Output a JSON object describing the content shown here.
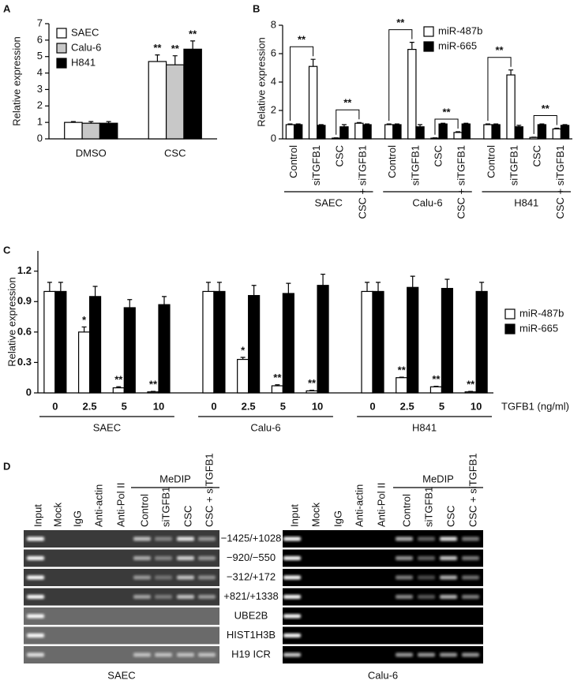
{
  "panels": [
    "A",
    "B",
    "C",
    "D"
  ],
  "chart_data": [
    {
      "type": "bar",
      "ylabel": "Relative expression",
      "categories": [
        "DMSO",
        "CSC"
      ],
      "ylim": [
        0,
        7
      ],
      "yticks": [
        0,
        1,
        2,
        3,
        4,
        5,
        6,
        7
      ],
      "legend": "upper left",
      "series": [
        {
          "name": "SAEC",
          "color": "#ffffff",
          "values": [
            1.0,
            4.7
          ],
          "errors": [
            0.05,
            0.4
          ],
          "annotations": [
            null,
            "**"
          ]
        },
        {
          "name": "Calu-6",
          "color": "#c8c8c8",
          "values": [
            0.95,
            4.5
          ],
          "errors": [
            0.1,
            0.55
          ],
          "annotations": [
            null,
            "**"
          ]
        },
        {
          "name": "H841",
          "color": "#000000",
          "values": [
            0.95,
            5.45
          ],
          "errors": [
            0.1,
            0.5
          ],
          "annotations": [
            null,
            "**"
          ]
        }
      ]
    },
    {
      "type": "bar",
      "ylabel": "Relative expression",
      "categories": [
        "Control",
        "siTGFB1",
        "CSC",
        "CSC + siTGFB1",
        "Control",
        "siTGFB1",
        "CSC",
        "CSC + siTGFB1",
        "Control",
        "siTGFB1",
        "CSC",
        "CSC + siTGFB1"
      ],
      "groups": [
        "SAEC",
        "Calu-6",
        "H841"
      ],
      "ylim": [
        0,
        8
      ],
      "yticks": [
        0,
        2,
        4,
        6,
        8
      ],
      "legend": "upper right",
      "brackets": [
        "**",
        "**",
        "**",
        "**",
        "**",
        "**"
      ],
      "series": [
        {
          "name": "miR-487b",
          "color": "#ffffff",
          "values": [
            1,
            5.1,
            0.05,
            1.1,
            1,
            6.3,
            0.05,
            0.45,
            1,
            4.5,
            0.1,
            0.7
          ],
          "errors": [
            0.05,
            0.5,
            0.02,
            0.05,
            0.05,
            0.5,
            0.02,
            0.05,
            0.05,
            0.35,
            0.02,
            0.05
          ]
        },
        {
          "name": "miR-665",
          "color": "#000000",
          "values": [
            1,
            0.95,
            0.85,
            1.0,
            1,
            0.85,
            1.05,
            1.05,
            1,
            0.85,
            1.0,
            0.95
          ],
          "errors": [
            0.05,
            0.05,
            0.15,
            0.05,
            0.05,
            0.15,
            0.05,
            0.05,
            0.05,
            0.1,
            0.05,
            0.05
          ]
        }
      ]
    },
    {
      "type": "bar",
      "ylabel": "Relative expression",
      "xlabel": "TGFB1 (ng/ml)",
      "categories": [
        "0",
        "2.5",
        "5",
        "10",
        "0",
        "2.5",
        "5",
        "10",
        "0",
        "2.5",
        "5",
        "10"
      ],
      "groups": [
        "SAEC",
        "Calu-6",
        "H841"
      ],
      "ylim": [
        0,
        1.4
      ],
      "yticks": [
        0,
        0.3,
        0.6,
        0.9,
        1.2
      ],
      "legend": "right",
      "series": [
        {
          "name": "miR-487b",
          "color": "#ffffff",
          "values": [
            1,
            0.6,
            0.05,
            0.01,
            1,
            0.33,
            0.07,
            0.02,
            1,
            0.15,
            0.06,
            0.01
          ],
          "errors": [
            0.09,
            0.05,
            0.01,
            0.005,
            0.09,
            0.02,
            0.01,
            0.005,
            0.09,
            0.005,
            0.005,
            0.005
          ],
          "annotations": [
            null,
            "*",
            "**",
            "**",
            null,
            "*",
            "**",
            "**",
            null,
            "**",
            "**",
            "**"
          ]
        },
        {
          "name": "miR-665",
          "color": "#000000",
          "values": [
            1,
            0.95,
            0.84,
            0.87,
            1,
            0.96,
            0.98,
            1.06,
            1,
            1.04,
            1.03,
            1.0
          ],
          "errors": [
            0.09,
            0.1,
            0.08,
            0.08,
            0.09,
            0.1,
            0.1,
            0.11,
            0.09,
            0.11,
            0.09,
            0.09
          ]
        }
      ]
    }
  ],
  "gel": {
    "rows": [
      "−1425/+1028",
      "−920/−550",
      "−312/+172",
      "+821/+1338",
      "UBE2B",
      "HIST1H3B",
      "H19 ICR"
    ],
    "panels": [
      {
        "caption": "SAEC",
        "header": "MeDIP",
        "lanes": [
          "Input",
          "Mock",
          "IgG",
          "Anti-actin",
          "Anti-Pol II",
          "Control",
          "siTGFB1",
          "CSC",
          "CSC + siTGFB1"
        ]
      },
      {
        "caption": "Calu-6",
        "header": "MeDIP",
        "lanes": [
          "Input",
          "Mock",
          "IgG",
          "Anti-actin",
          "Anti-Pol II",
          "Control",
          "siTGFB1",
          "CSC",
          "CSC + siTGFB1"
        ]
      }
    ]
  }
}
